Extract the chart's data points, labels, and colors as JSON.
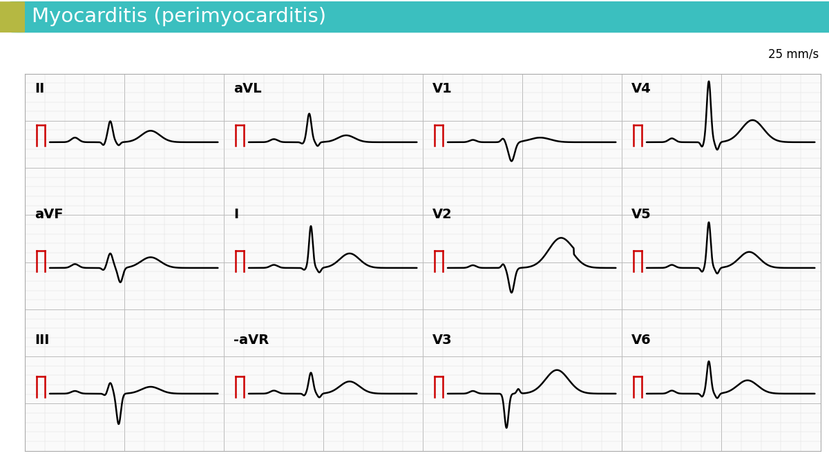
{
  "title": "Myocarditis (perimyocarditis)",
  "title_bg_color": "#3BBFBF",
  "title_left_accent": "#B5B842",
  "title_text_color": "#FFFFFF",
  "speed_label": "25 mm/s",
  "grid_minor_color": "#DDDDDD",
  "grid_major_color": "#BBBBBB",
  "ecg_color": "#000000",
  "cal_color": "#CC0000",
  "background": "#FFFFFF",
  "ecg_bg": "#FAFAFA",
  "lead_order": [
    "II",
    "aVL",
    "V1",
    "V4",
    "aVF",
    "I",
    "V2",
    "V5",
    "III",
    "-aVR",
    "V3",
    "V6"
  ]
}
